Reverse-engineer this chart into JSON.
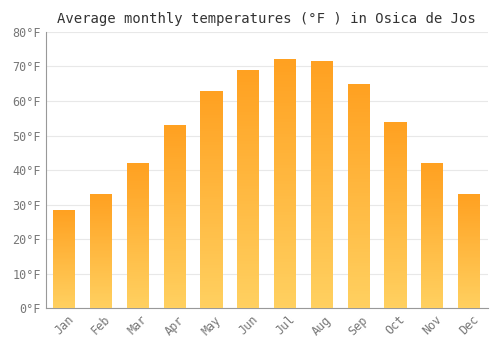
{
  "title": "Average monthly temperatures (°F ) in Osica de Jos",
  "months": [
    "Jan",
    "Feb",
    "Mar",
    "Apr",
    "May",
    "Jun",
    "Jul",
    "Aug",
    "Sep",
    "Oct",
    "Nov",
    "Dec"
  ],
  "values": [
    28.5,
    33.0,
    42.0,
    53.0,
    63.0,
    69.0,
    72.0,
    71.5,
    65.0,
    54.0,
    42.0,
    33.0
  ],
  "bar_color_bottom": "#FFD060",
  "bar_color_top": "#FFA020",
  "ylim": [
    0,
    80
  ],
  "yticks": [
    0,
    10,
    20,
    30,
    40,
    50,
    60,
    70,
    80
  ],
  "ytick_labels": [
    "0°F",
    "10°F",
    "20°F",
    "30°F",
    "40°F",
    "50°F",
    "60°F",
    "70°F",
    "80°F"
  ],
  "plot_bg_color": "#FFFFFF",
  "fig_bg_color": "#FFFFFF",
  "grid_color": "#E8E8E8",
  "title_fontsize": 10,
  "tick_fontsize": 8.5,
  "font_family": "monospace",
  "bar_width": 0.6
}
